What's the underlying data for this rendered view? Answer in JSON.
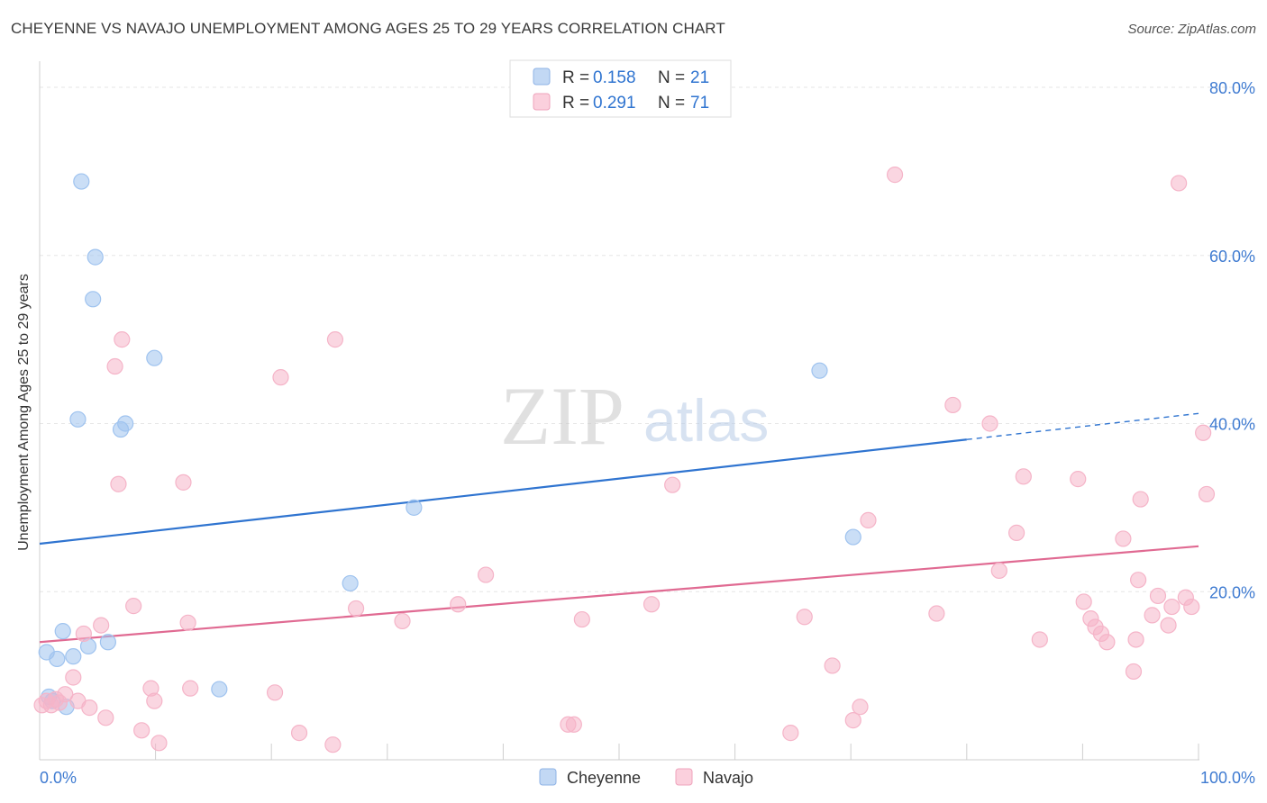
{
  "title": "CHEYENNE VS NAVAJO UNEMPLOYMENT AMONG AGES 25 TO 29 YEARS CORRELATION CHART",
  "source": "Source: ZipAtlas.com",
  "watermark": {
    "zip": "ZIP",
    "atlas": "atlas"
  },
  "chart_data": {
    "type": "scatter",
    "ylabel": "Unemployment Among Ages 25 to 29 years",
    "xlim": [
      0,
      100
    ],
    "ylim": [
      0,
      80
    ],
    "x_ticks": [
      "0.0%",
      "100.0%"
    ],
    "y_ticks": [
      {
        "value": 80,
        "label": "80.0%"
      },
      {
        "value": 60,
        "label": "60.0%"
      },
      {
        "value": 40,
        "label": "40.0%"
      },
      {
        "value": 20,
        "label": "20.0%"
      }
    ],
    "grid": true,
    "legend_position": "top-center",
    "stats": [
      {
        "r_label": "R = ",
        "r": "0.158",
        "n_label": "N = ",
        "n": "21"
      },
      {
        "r_label": "R = ",
        "r": "0.291",
        "n_label": "N = ",
        "n": "71"
      }
    ],
    "series": [
      {
        "name": "Cheyenne",
        "color": "#9fc3ef",
        "line_color": "#2f74d0",
        "trend": {
          "x0": 0,
          "y0": 25.7,
          "x1": 80,
          "y1": 38.1,
          "dash_to_x": 100,
          "dash_to_y": 41.2
        },
        "points": [
          [
            0.8,
            7.5
          ],
          [
            1.1,
            7.0
          ],
          [
            0.6,
            12.8
          ],
          [
            1.5,
            12.0
          ],
          [
            2.0,
            15.3
          ],
          [
            2.3,
            6.3
          ],
          [
            2.9,
            12.3
          ],
          [
            3.3,
            40.5
          ],
          [
            3.6,
            68.8
          ],
          [
            4.2,
            13.5
          ],
          [
            4.6,
            54.8
          ],
          [
            4.8,
            59.8
          ],
          [
            5.9,
            14.0
          ],
          [
            7.0,
            39.3
          ],
          [
            7.4,
            40.0
          ],
          [
            9.9,
            47.8
          ],
          [
            15.5,
            8.4
          ],
          [
            26.8,
            21.0
          ],
          [
            32.3,
            30.0
          ],
          [
            67.3,
            46.3
          ],
          [
            70.2,
            26.5
          ]
        ]
      },
      {
        "name": "Navajo",
        "color": "#f5b4c8",
        "line_color": "#e06a92",
        "trend": {
          "x0": 0,
          "y0": 14.0,
          "x1": 100,
          "y1": 25.4
        },
        "points": [
          [
            0.2,
            6.5
          ],
          [
            0.6,
            7.0
          ],
          [
            1.0,
            6.5
          ],
          [
            1.4,
            7.2
          ],
          [
            1.7,
            6.8
          ],
          [
            2.2,
            7.8
          ],
          [
            2.9,
            9.8
          ],
          [
            3.3,
            7.0
          ],
          [
            3.8,
            15.0
          ],
          [
            4.3,
            6.2
          ],
          [
            5.3,
            16.0
          ],
          [
            5.7,
            5.0
          ],
          [
            6.5,
            46.8
          ],
          [
            6.8,
            32.8
          ],
          [
            7.1,
            50.0
          ],
          [
            8.1,
            18.3
          ],
          [
            8.8,
            3.5
          ],
          [
            9.6,
            8.5
          ],
          [
            9.9,
            7.0
          ],
          [
            10.3,
            2.0
          ],
          [
            12.4,
            33.0
          ],
          [
            12.8,
            16.3
          ],
          [
            13.0,
            8.5
          ],
          [
            20.3,
            8.0
          ],
          [
            20.8,
            45.5
          ],
          [
            22.4,
            3.2
          ],
          [
            25.3,
            1.8
          ],
          [
            25.5,
            50.0
          ],
          [
            27.3,
            18.0
          ],
          [
            31.3,
            16.5
          ],
          [
            36.1,
            18.5
          ],
          [
            38.5,
            22.0
          ],
          [
            45.6,
            4.2
          ],
          [
            46.1,
            4.2
          ],
          [
            46.8,
            16.7
          ],
          [
            52.8,
            18.5
          ],
          [
            54.6,
            32.7
          ],
          [
            64.8,
            3.2
          ],
          [
            66.0,
            17.0
          ],
          [
            68.4,
            11.2
          ],
          [
            70.2,
            4.7
          ],
          [
            70.8,
            6.3
          ],
          [
            71.5,
            28.5
          ],
          [
            73.8,
            69.6
          ],
          [
            77.4,
            17.4
          ],
          [
            78.8,
            42.2
          ],
          [
            82.0,
            40.0
          ],
          [
            82.8,
            22.5
          ],
          [
            84.3,
            27.0
          ],
          [
            84.9,
            33.7
          ],
          [
            86.3,
            14.3
          ],
          [
            89.6,
            33.4
          ],
          [
            90.1,
            18.8
          ],
          [
            90.7,
            16.8
          ],
          [
            91.1,
            15.8
          ],
          [
            91.6,
            15.0
          ],
          [
            92.1,
            14.0
          ],
          [
            93.5,
            26.3
          ],
          [
            94.4,
            10.5
          ],
          [
            94.6,
            14.3
          ],
          [
            94.8,
            21.4
          ],
          [
            95.0,
            31.0
          ],
          [
            96.0,
            17.2
          ],
          [
            96.5,
            19.5
          ],
          [
            97.4,
            16.0
          ],
          [
            97.7,
            18.2
          ],
          [
            98.3,
            68.6
          ],
          [
            98.9,
            19.3
          ],
          [
            99.4,
            18.2
          ],
          [
            100.4,
            38.9
          ],
          [
            100.7,
            31.6
          ]
        ]
      }
    ]
  }
}
